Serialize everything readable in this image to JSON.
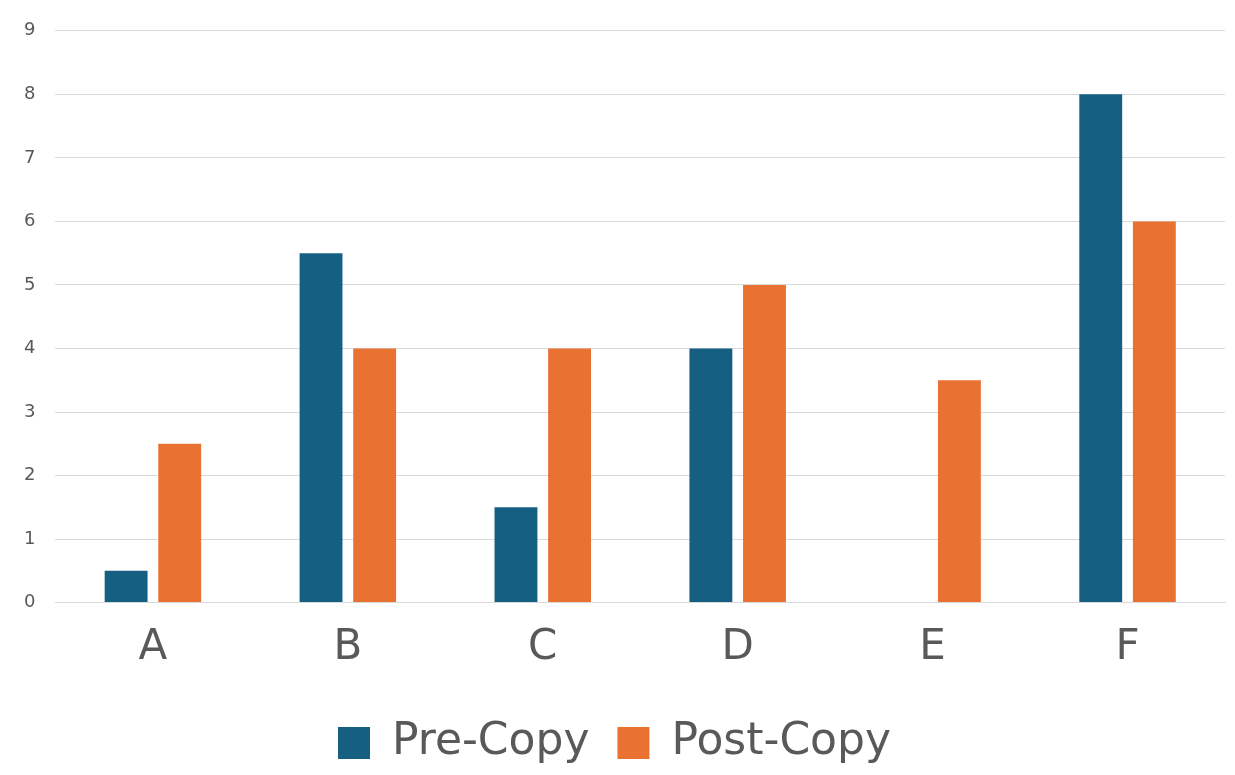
{
  "chart_data": {
    "type": "bar",
    "categories": [
      "A",
      "B",
      "C",
      "D",
      "E",
      "F"
    ],
    "series": [
      {
        "name": "Pre-Copy",
        "color": "#156082",
        "values": [
          0.5,
          5.5,
          1.5,
          4,
          0,
          8
        ]
      },
      {
        "name": "Post-Copy",
        "color": "#e97132",
        "values": [
          2.5,
          4,
          4,
          5,
          3.5,
          6
        ]
      }
    ],
    "ylim": [
      0,
      9
    ],
    "yticks": [
      0,
      1,
      2,
      3,
      4,
      5,
      6,
      7,
      8,
      9
    ],
    "grid": "y",
    "legend": "bottom"
  }
}
